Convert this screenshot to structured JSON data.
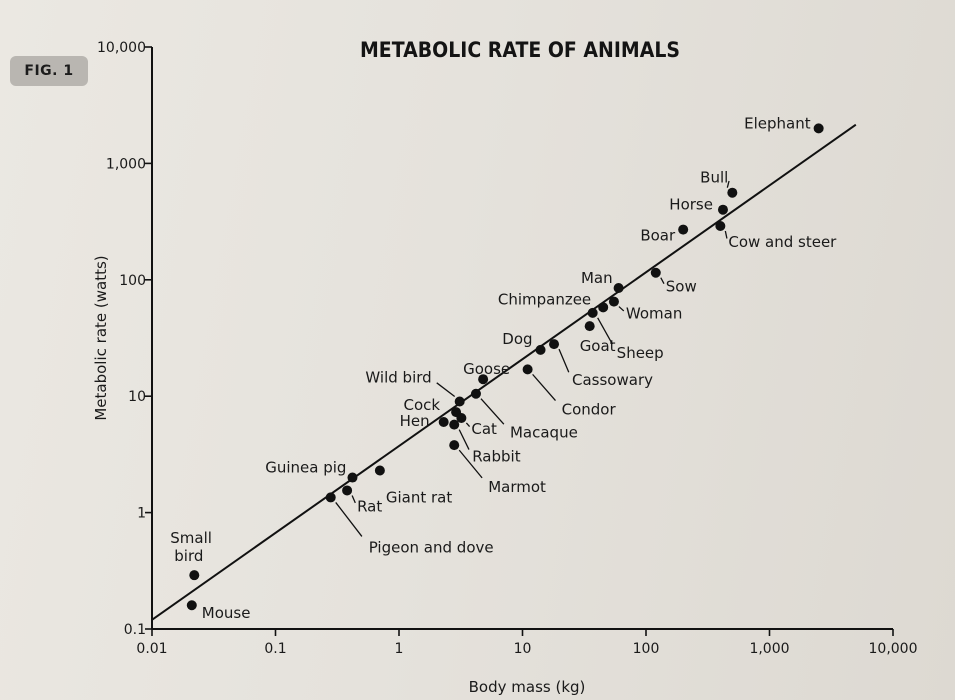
{
  "figure": {
    "badge": "FIG. 1"
  },
  "chart_data": {
    "type": "scatter",
    "title": "METABOLIC RATE OF ANIMALS",
    "xlabel": "Body mass (kg)",
    "ylabel": "Metabolic rate (watts)",
    "xscale": "log",
    "yscale": "log",
    "xlim": [
      0.01,
      10000
    ],
    "ylim": [
      0.1,
      10000
    ],
    "xticks": [
      "0.01",
      "0.1",
      "1",
      "10",
      "100",
      "1,000",
      "10,000"
    ],
    "yticks": [
      "0.1",
      "1",
      "10",
      "100",
      "1,000",
      "10,000"
    ],
    "points": [
      {
        "label": "Elephant",
        "x": 2500,
        "y": 2000
      },
      {
        "label": "Bull",
        "x": 500,
        "y": 560
      },
      {
        "label": "Horse",
        "x": 420,
        "y": 400
      },
      {
        "label": "Boar",
        "x": 200,
        "y": 270
      },
      {
        "label": "Cow and steer",
        "x": 400,
        "y": 290
      },
      {
        "label": "Sow",
        "x": 120,
        "y": 115
      },
      {
        "label": "Man",
        "x": 60,
        "y": 85
      },
      {
        "label": "Woman",
        "x": 55,
        "y": 65
      },
      {
        "label": "Chimpanzee",
        "x": 45,
        "y": 58
      },
      {
        "label": "Goat",
        "x": 35,
        "y": 40
      },
      {
        "label": "Sheep",
        "x": 37,
        "y": 52
      },
      {
        "label": "Dog",
        "x": 14,
        "y": 25
      },
      {
        "label": "Cassowary",
        "x": 18,
        "y": 28
      },
      {
        "label": "Condor",
        "x": 11,
        "y": 17
      },
      {
        "label": "Goose",
        "x": 4.8,
        "y": 14
      },
      {
        "label": "Wild bird",
        "x": 3.1,
        "y": 9
      },
      {
        "label": "Macaque",
        "x": 4.2,
        "y": 10.5
      },
      {
        "label": "Cock",
        "x": 2.9,
        "y": 7.3
      },
      {
        "label": "Cat",
        "x": 3.2,
        "y": 6.5
      },
      {
        "label": "Hen",
        "x": 2.3,
        "y": 6
      },
      {
        "label": "Rabbit",
        "x": 2.8,
        "y": 5.7
      },
      {
        "label": "Marmot",
        "x": 2.8,
        "y": 3.8
      },
      {
        "label": "Giant rat",
        "x": 0.7,
        "y": 2.3
      },
      {
        "label": "Guinea pig",
        "x": 0.42,
        "y": 2
      },
      {
        "label": "Rat",
        "x": 0.38,
        "y": 1.55
      },
      {
        "label": "Pigeon and dove",
        "x": 0.28,
        "y": 1.35
      },
      {
        "label": "Small bird",
        "x": 0.022,
        "y": 0.29
      },
      {
        "label": "Mouse",
        "x": 0.021,
        "y": 0.16
      }
    ],
    "fit_line": {
      "x": [
        0.01,
        5000
      ],
      "y": [
        0.12,
        2150
      ]
    },
    "grid": false,
    "legend": "none"
  }
}
